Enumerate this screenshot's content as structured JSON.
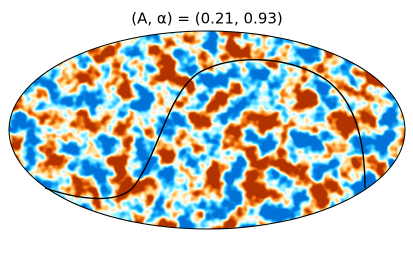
{
  "chart_data": {
    "type": "mollweide",
    "title": "(A, α) = (0.21, 0.93)"
  }
}
